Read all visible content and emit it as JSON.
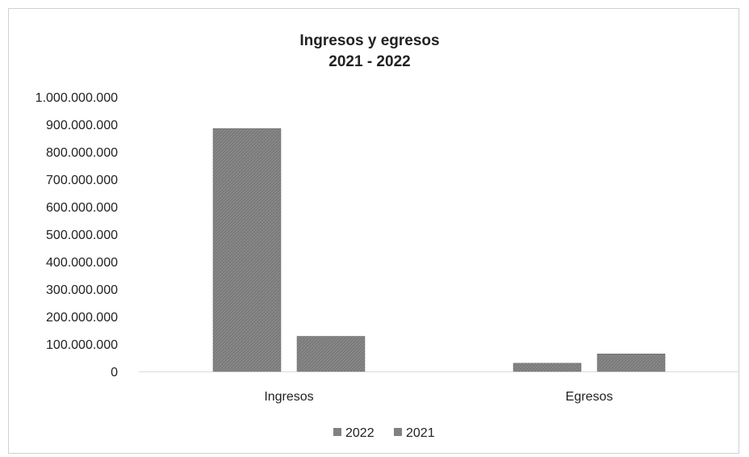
{
  "chart_data": {
    "type": "bar",
    "title": "Ingresos y egresos",
    "subtitle": "2021 - 2022",
    "categories": [
      "Ingresos",
      "Egresos"
    ],
    "series": [
      {
        "name": "2022",
        "values": [
          885000000,
          30000000
        ]
      },
      {
        "name": "2021",
        "values": [
          128000000,
          64000000
        ]
      }
    ],
    "ylim": [
      0,
      1000000000
    ],
    "yticks": [
      0,
      100000000,
      200000000,
      300000000,
      400000000,
      500000000,
      600000000,
      700000000,
      800000000,
      900000000,
      1000000000
    ],
    "ytick_labels": [
      "0",
      "100.000.000",
      "200.000.000",
      "300.000.000",
      "400.000.000",
      "500.000.000",
      "600.000.000",
      "700.000.000",
      "800.000.000",
      "900.000.000",
      "1.000.000.000"
    ],
    "xlabel": "",
    "ylabel": "",
    "legend_position": "bottom",
    "grid": false,
    "colors": [
      "#7f7f7f",
      "#7f7f7f"
    ]
  }
}
